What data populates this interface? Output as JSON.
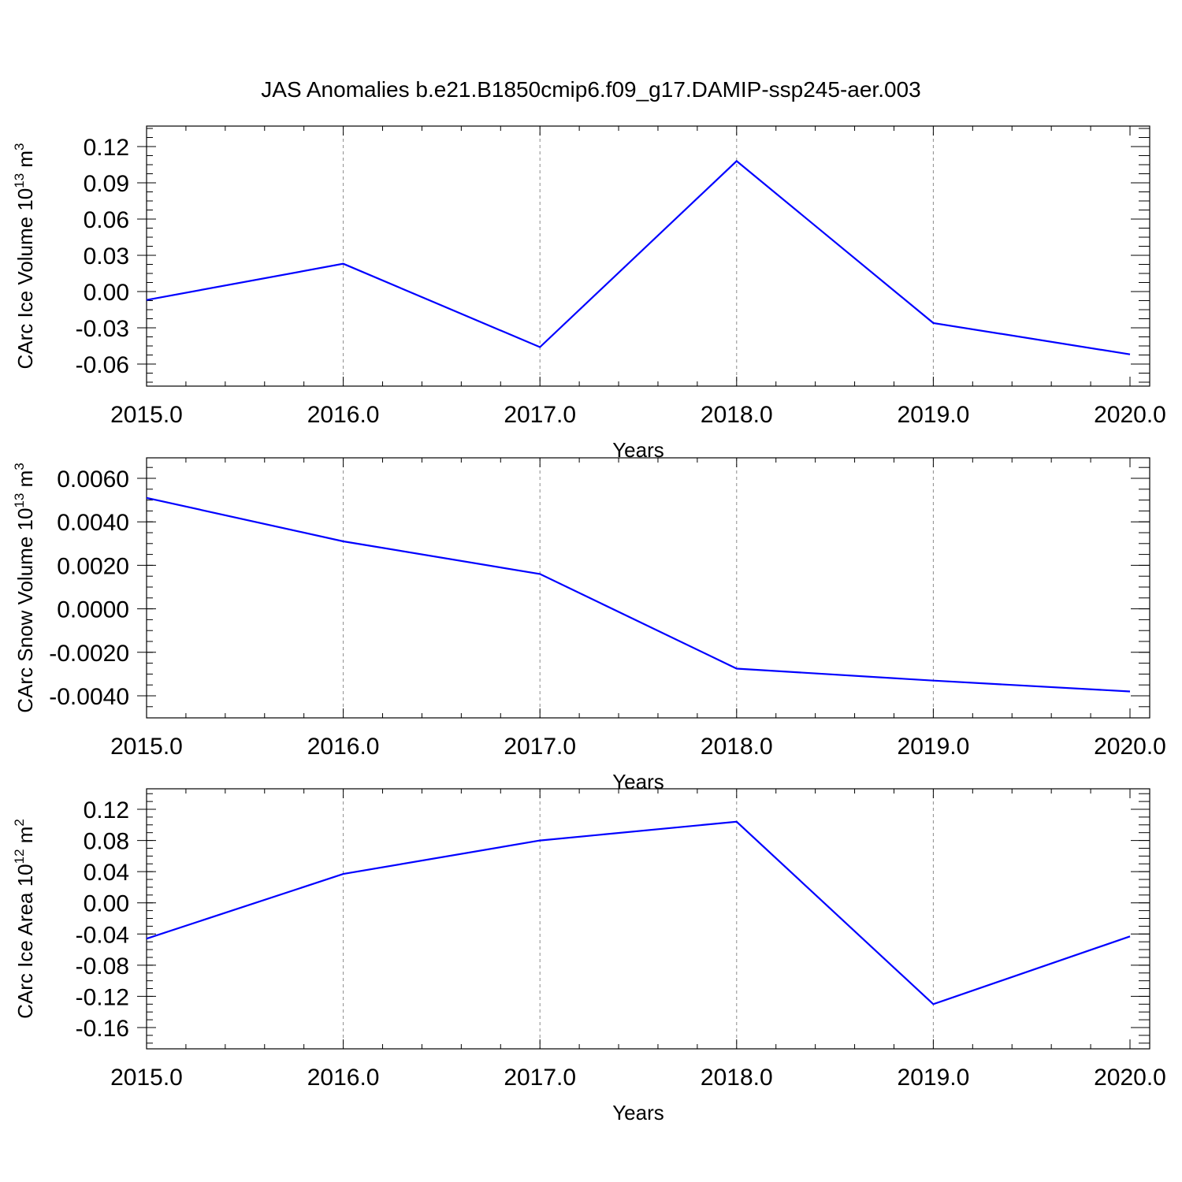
{
  "figure": {
    "title": "JAS Anomalies b.e21.B1850cmip6.f09_g17.DAMIP-ssp245-aer.003"
  },
  "colors": {
    "line": "#0000ff",
    "grid": "#8a8a8a",
    "axes": "#000000"
  },
  "chart_data": [
    {
      "type": "line",
      "title": "",
      "xlabel": "Years",
      "ylabel": {
        "text": "CArc Ice Volume 10",
        "sup1": "13",
        "unit": " m",
        "sup2": "3"
      },
      "x": [
        2015,
        2016,
        2017,
        2018,
        2019,
        2020
      ],
      "series": [
        {
          "values": [
            -0.007,
            0.023,
            -0.046,
            0.108,
            -0.026,
            -0.052
          ]
        }
      ],
      "xlim": [
        2015,
        2020
      ],
      "ylim": [
        -0.06,
        0.12
      ],
      "xticks": [
        "2015.0",
        "2016.0",
        "2017.0",
        "2018.0",
        "2019.0",
        "2020.0"
      ],
      "yticks": [
        "0.12",
        "0.09",
        "0.06",
        "0.03",
        "0.00",
        "-0.03",
        "-0.06"
      ],
      "grid": "vertical dashed"
    },
    {
      "type": "line",
      "title": "",
      "xlabel": "Years",
      "ylabel": {
        "text": "CArc Snow Volume 10",
        "sup1": "13",
        "unit": " m",
        "sup2": "3"
      },
      "x": [
        2015,
        2016,
        2017,
        2018,
        2019,
        2020
      ],
      "series": [
        {
          "values": [
            0.0051,
            0.0031,
            0.0016,
            -0.00275,
            -0.0033,
            -0.0038
          ]
        }
      ],
      "xlim": [
        2015,
        2020
      ],
      "ylim": [
        -0.004,
        0.006
      ],
      "xticks": [
        "2015.0",
        "2016.0",
        "2017.0",
        "2018.0",
        "2019.0",
        "2020.0"
      ],
      "yticks": [
        "0.0060",
        "0.0040",
        "0.0020",
        "0.0000",
        "-0.0020",
        "-0.0040"
      ],
      "grid": "vertical dashed"
    },
    {
      "type": "line",
      "title": "",
      "xlabel": "Years",
      "ylabel": {
        "text": "CArc Ice Area 10",
        "sup1": "12",
        "unit": " m",
        "sup2": "2"
      },
      "x": [
        2015,
        2016,
        2017,
        2018,
        2019,
        2020
      ],
      "series": [
        {
          "values": [
            -0.046,
            0.037,
            0.08,
            0.104,
            -0.13,
            -0.043
          ]
        }
      ],
      "xlim": [
        2015,
        2020
      ],
      "ylim": [
        -0.16,
        0.12
      ],
      "xticks": [
        "2015.0",
        "2016.0",
        "2017.0",
        "2018.0",
        "2019.0",
        "2020.0"
      ],
      "yticks": [
        "0.12",
        "0.08",
        "0.04",
        "0.00",
        "-0.04",
        "-0.08",
        "-0.12",
        "-0.16"
      ],
      "grid": "vertical dashed"
    }
  ]
}
